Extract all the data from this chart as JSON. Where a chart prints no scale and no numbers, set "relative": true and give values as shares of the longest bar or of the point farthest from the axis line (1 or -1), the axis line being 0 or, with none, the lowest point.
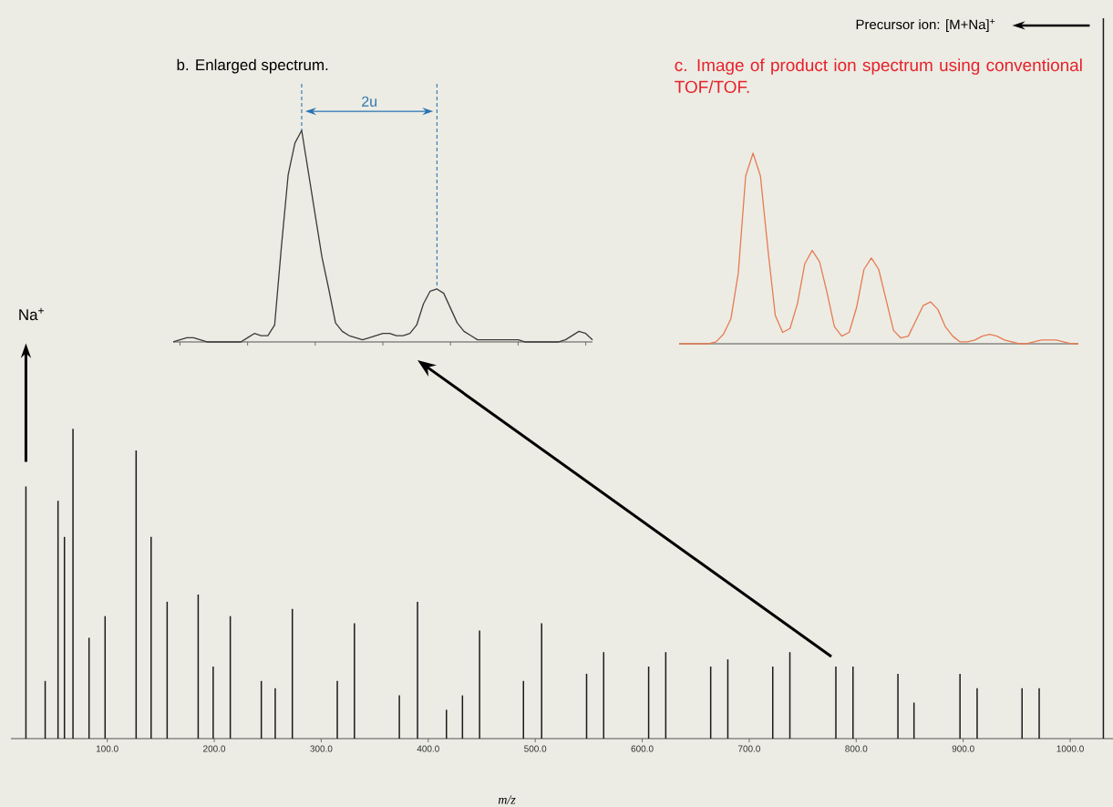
{
  "chart_data": [
    {
      "type": "bar",
      "relative": true,
      "xlabel": "m/z",
      "color": "#1a1a1a",
      "xlim": [
        10,
        1040
      ],
      "xticks": [
        {
          "value": 100,
          "label": "100.0"
        },
        {
          "value": 200,
          "label": "200.0"
        },
        {
          "value": 300,
          "label": "300.0"
        },
        {
          "value": 400,
          "label": "400.0"
        },
        {
          "value": 500,
          "label": "500.0"
        },
        {
          "value": 600,
          "label": "600.0"
        },
        {
          "value": 700,
          "label": "700.0"
        },
        {
          "value": 800,
          "label": "800.0"
        },
        {
          "value": 900,
          "label": "900.0"
        },
        {
          "value": 1000,
          "label": "1000.0"
        }
      ],
      "x": [
        24,
        42,
        54,
        60,
        68,
        83,
        98,
        127,
        141,
        156,
        185,
        199,
        215,
        244,
        257,
        273,
        315,
        331,
        373,
        390,
        417,
        432,
        448,
        489,
        506,
        548,
        564,
        606,
        622,
        664,
        680,
        722,
        738,
        781,
        797,
        839,
        854,
        897,
        913,
        955,
        971,
        1031
      ],
      "values": [
        0.35,
        0.08,
        0.33,
        0.28,
        0.43,
        0.14,
        0.17,
        0.4,
        0.28,
        0.19,
        0.2,
        0.1,
        0.17,
        0.08,
        0.07,
        0.18,
        0.08,
        0.16,
        0.06,
        0.19,
        0.04,
        0.06,
        0.15,
        0.08,
        0.16,
        0.09,
        0.12,
        0.1,
        0.12,
        0.1,
        0.11,
        0.1,
        0.12,
        0.1,
        0.1,
        0.09,
        0.05,
        0.09,
        0.07,
        0.07,
        0.07,
        1.0
      ],
      "annotations": [
        "Na$^{+}$",
        "Precursor ion: [M+Na]$^{+}$"
      ]
    },
    {
      "type": "line",
      "relative": true,
      "title": "b. Enlarged spectrum.",
      "color": "#3a3a3a",
      "categories": [
        null,
        null,
        null,
        null,
        null,
        null,
        null,
        null,
        null,
        null,
        null,
        null,
        null,
        null,
        null,
        null,
        null,
        null,
        null,
        null,
        null,
        null,
        null,
        null,
        null,
        null,
        null,
        null,
        null,
        null,
        null,
        null,
        null,
        null,
        null,
        null,
        null,
        null,
        null,
        null,
        null,
        null,
        null,
        null,
        null,
        null,
        null,
        null,
        null,
        null,
        null,
        null,
        null,
        null,
        null,
        null,
        null,
        null,
        null,
        null,
        null,
        null,
        null
      ],
      "values": [
        0,
        0.01,
        0.02,
        0.02,
        0.01,
        0,
        0,
        0,
        0,
        0,
        0,
        0.02,
        0.04,
        0.03,
        0.03,
        0.08,
        0.45,
        0.79,
        0.94,
        1.0,
        0.8,
        0.6,
        0.4,
        0.25,
        0.09,
        0.05,
        0.03,
        0.02,
        0.01,
        0.02,
        0.03,
        0.04,
        0.04,
        0.03,
        0.03,
        0.04,
        0.08,
        0.18,
        0.24,
        0.25,
        0.23,
        0.16,
        0.09,
        0.05,
        0.03,
        0.01,
        0.01,
        0.01,
        0.01,
        0.01,
        0.01,
        0.01,
        0,
        0,
        0,
        0,
        0,
        0,
        0.01,
        0.03,
        0.05,
        0.04,
        0.01
      ],
      "annotations": [
        "2u"
      ]
    },
    {
      "type": "line",
      "relative": true,
      "title": "c. Image of product ion spectrum using conventional TOF/TOF.",
      "color": "#e67b52",
      "categories": [
        null,
        null,
        null,
        null,
        null,
        null,
        null,
        null,
        null,
        null,
        null,
        null,
        null,
        null,
        null,
        null,
        null,
        null,
        null,
        null,
        null,
        null,
        null,
        null,
        null,
        null,
        null,
        null,
        null,
        null,
        null,
        null,
        null,
        null,
        null,
        null,
        null,
        null,
        null,
        null,
        null,
        null,
        null,
        null,
        null,
        null,
        null,
        null,
        null,
        null,
        null,
        null,
        null,
        null,
        null
      ],
      "values": [
        0,
        0,
        0,
        0,
        0,
        0.01,
        0.05,
        0.13,
        0.37,
        0.88,
        1.0,
        0.88,
        0.5,
        0.15,
        0.06,
        0.08,
        0.21,
        0.42,
        0.49,
        0.43,
        0.27,
        0.09,
        0.04,
        0.06,
        0.19,
        0.39,
        0.45,
        0.39,
        0.23,
        0.07,
        0.03,
        0.04,
        0.12,
        0.2,
        0.22,
        0.18,
        0.09,
        0.04,
        0.01,
        0.01,
        0.02,
        0.04,
        0.05,
        0.04,
        0.02,
        0.01,
        0,
        0,
        0.01,
        0.02,
        0.02,
        0.02,
        0.01,
        0,
        0
      ]
    }
  ]
}
